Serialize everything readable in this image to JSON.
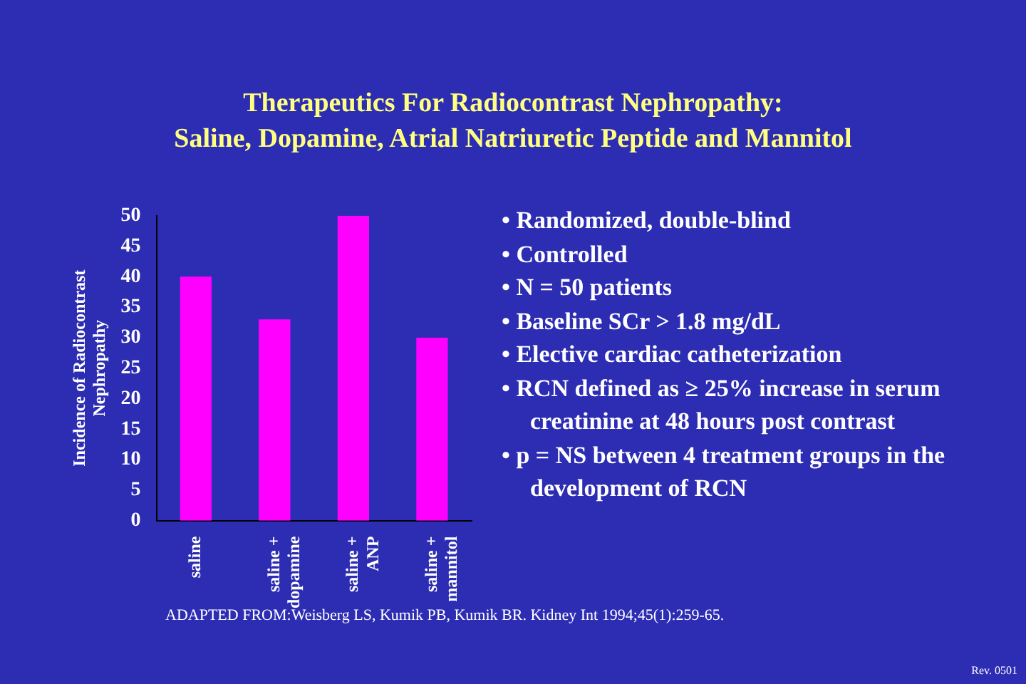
{
  "chart_data": {
    "type": "bar",
    "title": "Therapeutics For Radiocontrast Nephropathy:\nSaline, Dopamine, Atrial Natriuretic Peptide and Mannitol",
    "ylabel": "Incidence of Radiocontrast Nephropathy",
    "categories": [
      "saline",
      "saline + dopamine",
      "saline + ANP",
      "saline + mannitol"
    ],
    "values": [
      40,
      33,
      50,
      30
    ],
    "color": "#ff00ff",
    "ylim": [
      0,
      50
    ],
    "yticks": [
      0,
      5,
      10,
      15,
      20,
      25,
      30,
      35,
      40,
      45,
      50
    ],
    "grid": false,
    "legend": false,
    "annotations": [
      "• Randomized, double-blind",
      "• Controlled",
      "• N = 50 patients",
      "• Baseline SCr > 1.8 mg/dL",
      "• Elective cardiac catheterization",
      "• RCN defined as ≥ 25% increase in serum creatinine at 48 hours post contrast",
      "• p = NS between 4 treatment groups in the development of RCN",
      "ADAPTED FROM:Weisberg LS, Kumik PB, Kumik BR. Kidney Int 1994;45(1):259-65.",
      "Rev. 0501"
    ]
  }
}
